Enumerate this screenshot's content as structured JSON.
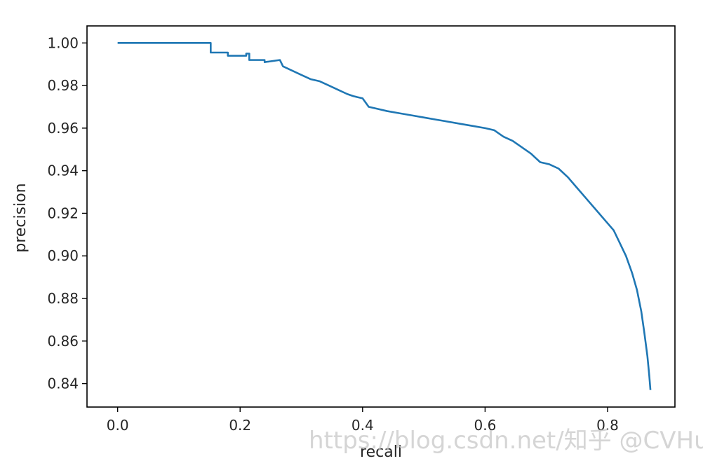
{
  "chart_data": {
    "type": "line",
    "title": "",
    "xlabel": "recall",
    "ylabel": "precision",
    "xlim": [
      -0.05,
      0.91
    ],
    "ylim": [
      0.829,
      1.008
    ],
    "xticks": [
      0.0,
      0.2,
      0.4,
      0.6,
      0.8
    ],
    "xtick_labels": [
      "0.0",
      "0.2",
      "0.4",
      "0.6",
      "0.8"
    ],
    "yticks": [
      0.84,
      0.86,
      0.88,
      0.9,
      0.92,
      0.94,
      0.96,
      0.98,
      1.0
    ],
    "ytick_labels": [
      "0.84",
      "0.86",
      "0.88",
      "0.90",
      "0.92",
      "0.94",
      "0.96",
      "0.98",
      "1.00"
    ],
    "grid": false,
    "line_color": "#1f77b4",
    "series": [
      {
        "x": [
          0.0,
          0.152,
          0.152,
          0.18,
          0.18,
          0.21,
          0.21,
          0.215,
          0.215,
          0.24,
          0.24,
          0.265,
          0.27,
          0.285,
          0.3,
          0.315,
          0.33,
          0.345,
          0.36,
          0.375,
          0.385,
          0.4,
          0.41,
          0.425,
          0.44,
          0.46,
          0.48,
          0.5,
          0.52,
          0.54,
          0.56,
          0.58,
          0.6,
          0.615,
          0.63,
          0.645,
          0.66,
          0.675,
          0.69,
          0.705,
          0.72,
          0.735,
          0.75,
          0.765,
          0.78,
          0.795,
          0.81,
          0.82,
          0.83,
          0.84,
          0.848,
          0.855,
          0.86,
          0.865,
          0.868,
          0.87
        ],
        "y": [
          1.0,
          1.0,
          0.9955,
          0.9955,
          0.994,
          0.994,
          0.995,
          0.995,
          0.992,
          0.992,
          0.991,
          0.992,
          0.989,
          0.987,
          0.985,
          0.983,
          0.982,
          0.98,
          0.978,
          0.976,
          0.975,
          0.974,
          0.97,
          0.969,
          0.968,
          0.967,
          0.966,
          0.965,
          0.964,
          0.963,
          0.962,
          0.961,
          0.96,
          0.959,
          0.956,
          0.954,
          0.951,
          0.948,
          0.944,
          0.943,
          0.941,
          0.937,
          0.932,
          0.927,
          0.922,
          0.917,
          0.912,
          0.906,
          0.9,
          0.892,
          0.884,
          0.874,
          0.864,
          0.853,
          0.844,
          0.837
        ]
      }
    ]
  },
  "watermark": {
    "text": "https://blog.csdn.net/知乎 @CVHub"
  }
}
